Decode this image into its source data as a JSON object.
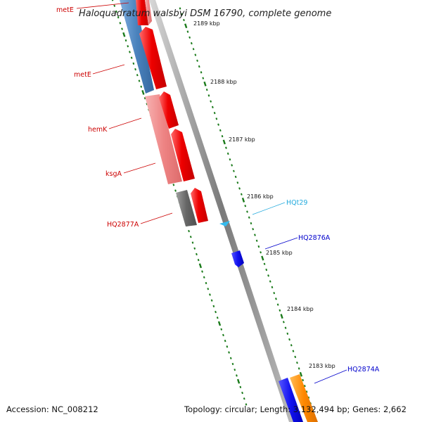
{
  "title": "Haloquadratum walsbyi DSM 16790, complete genome",
  "footer": {
    "accession": "Accession: NC_008212",
    "summary": "Topology: circular; Length: 3,132,494 bp; Genes: 2,662"
  },
  "ticks": [
    "2189 kbp",
    "2188 kbp",
    "2187 kbp",
    "2186 kbp",
    "2185 kbp",
    "2184 kbp",
    "2183 kbp"
  ],
  "gene_labels": [
    {
      "text": "metE",
      "color": "#cc0000"
    },
    {
      "text": "metE",
      "color": "#cc0000"
    },
    {
      "text": "hemK",
      "color": "#cc0000"
    },
    {
      "text": "ksgA",
      "color": "#cc0000"
    },
    {
      "text": "HQ2877A",
      "color": "#cc0000"
    },
    {
      "text": "HQt29",
      "color": "#22aadd"
    },
    {
      "text": "HQ2876A",
      "color": "#0000cc"
    },
    {
      "text": "HQ2874A",
      "color": "#0000cc"
    }
  ],
  "colors": {
    "backbone": "#888888",
    "tick": "#1a7a1a",
    "red_gene": "#ee0000",
    "pink_gene": "#ee8888",
    "steel_gene": "#4a82bd",
    "gray_gene": "#666666",
    "blue_gene": "#1111ee",
    "orange_gene": "#ff8800",
    "trna": "#33bbee"
  }
}
